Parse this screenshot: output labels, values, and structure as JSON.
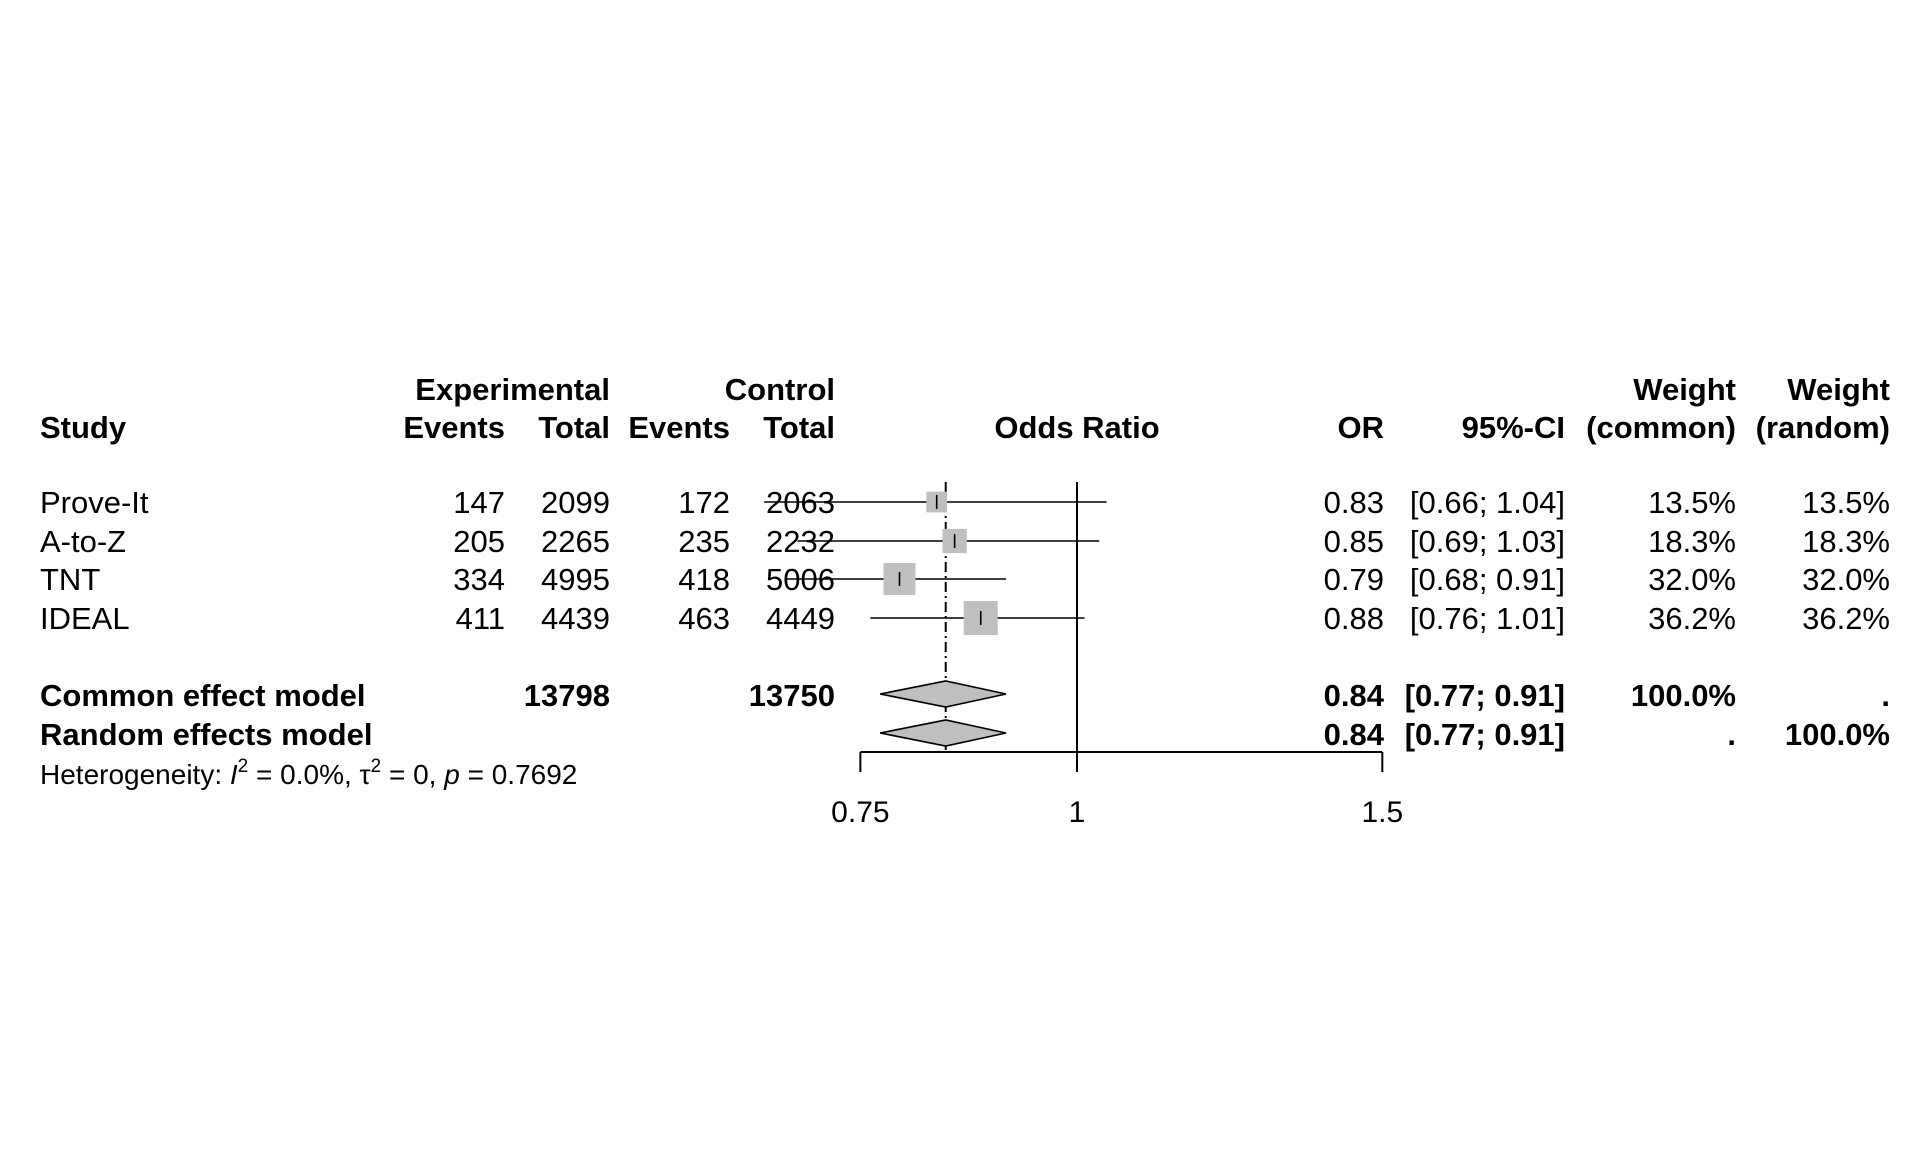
{
  "chart_data": {
    "type": "forest",
    "columns": {
      "study": "Study",
      "exp_group": "Experimental",
      "ctrl_group": "Control",
      "events": "Events",
      "total": "Total",
      "plot": "Odds Ratio",
      "or": "OR",
      "ci": "95%-CI",
      "weight": "Weight",
      "common": "(common)",
      "random": "(random)"
    },
    "studies": [
      {
        "name": "Prove-It",
        "exp_events": "147",
        "exp_total": "2099",
        "ctrl_events": "172",
        "ctrl_total": "2063",
        "or_text": "0.83",
        "ci_text": "[0.66; 1.04]",
        "w_common": "13.5%",
        "w_random": "13.5%",
        "or": 0.83,
        "lower": 0.66,
        "upper": 1.04,
        "weight": 13.5
      },
      {
        "name": "A-to-Z",
        "exp_events": "205",
        "exp_total": "2265",
        "ctrl_events": "235",
        "ctrl_total": "2232",
        "or_text": "0.85",
        "ci_text": "[0.69; 1.03]",
        "w_common": "18.3%",
        "w_random": "18.3%",
        "or": 0.85,
        "lower": 0.69,
        "upper": 1.03,
        "weight": 18.3
      },
      {
        "name": "TNT",
        "exp_events": "334",
        "exp_total": "4995",
        "ctrl_events": "418",
        "ctrl_total": "5006",
        "or_text": "0.79",
        "ci_text": "[0.68; 0.91]",
        "w_common": "32.0%",
        "w_random": "32.0%",
        "or": 0.79,
        "lower": 0.68,
        "upper": 0.91,
        "weight": 32.0
      },
      {
        "name": "IDEAL",
        "exp_events": "411",
        "exp_total": "4439",
        "ctrl_events": "463",
        "ctrl_total": "4449",
        "or_text": "0.88",
        "ci_text": "[0.76; 1.01]",
        "w_common": "36.2%",
        "w_random": "36.2%",
        "or": 0.88,
        "lower": 0.76,
        "upper": 1.01,
        "weight": 36.2
      }
    ],
    "pooled": [
      {
        "name": "Common effect model",
        "exp_total": "13798",
        "ctrl_total": "13750",
        "or_text": "0.84",
        "ci_text": "[0.77; 0.91]",
        "w_common": "100.0%",
        "w_random": ".",
        "or": 0.84,
        "lower": 0.77,
        "upper": 0.91
      },
      {
        "name": "Random effects model",
        "exp_total": "",
        "ctrl_total": "",
        "or_text": "0.84",
        "ci_text": "[0.77; 0.91]",
        "w_common": ".",
        "w_random": "100.0%",
        "or": 0.84,
        "lower": 0.77,
        "upper": 0.91
      }
    ],
    "heterogeneity": {
      "prefix": "Heterogeneity: ",
      "i_symbol": "I",
      "i_value": " = 0.0%, ",
      "tau_symbol": "τ",
      "tau_value": " = 0, ",
      "p_symbol": "p",
      "p_value": " = 0.7692",
      "sup": "2"
    },
    "x_axis": {
      "scale": "log",
      "ticks": [
        0.75,
        1,
        1.5
      ],
      "tick_labels": [
        "0.75",
        "1",
        "1.5"
      ],
      "range": [
        0.75,
        1.5
      ],
      "reference_line": 1,
      "pooled_line": 0.84
    },
    "colors": {
      "square": "#bfbfbf",
      "diamond": "#bfbfbf",
      "line": "#000000"
    }
  }
}
